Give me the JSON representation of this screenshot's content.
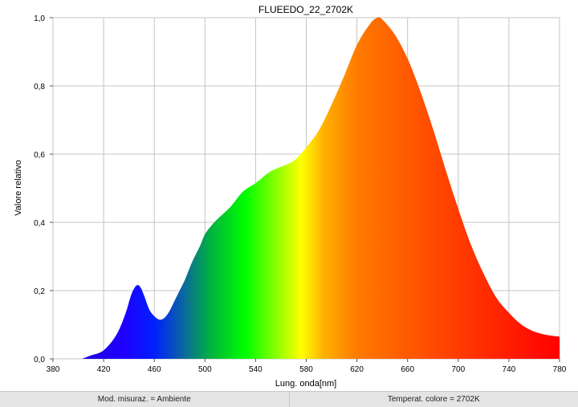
{
  "chart_data": {
    "type": "area",
    "title": "FLUEEDO_22_2702K",
    "xlabel": "Lung. onda[nm]",
    "ylabel": "Valore relativo",
    "xlim": [
      380,
      780
    ],
    "ylim": [
      0,
      1
    ],
    "x_ticks": [
      "380",
      "420",
      "460",
      "500",
      "540",
      "580",
      "620",
      "660",
      "700",
      "740",
      "780"
    ],
    "y_ticks": [
      "0,0",
      "0,2",
      "0,4",
      "0,6",
      "0,8",
      "1,0"
    ],
    "grid": true,
    "fill": "visible-spectrum gradient",
    "series": [
      {
        "x": [
          403,
          410,
          420,
          430,
          437,
          442,
          446,
          449,
          452,
          456,
          460,
          464,
          468,
          472,
          476,
          480,
          484,
          490,
          496,
          500,
          505,
          510,
          520,
          530,
          540,
          550,
          558,
          570,
          580,
          590,
          600,
          610,
          620,
          630,
          636,
          640,
          650,
          660,
          670,
          680,
          690,
          700,
          710,
          720,
          730,
          740,
          750,
          760,
          770,
          780
        ],
        "y": [
          0.0,
          0.01,
          0.025,
          0.07,
          0.13,
          0.19,
          0.215,
          0.21,
          0.185,
          0.145,
          0.125,
          0.115,
          0.12,
          0.14,
          0.17,
          0.2,
          0.23,
          0.285,
          0.33,
          0.365,
          0.39,
          0.41,
          0.445,
          0.49,
          0.515,
          0.545,
          0.56,
          0.58,
          0.62,
          0.67,
          0.745,
          0.83,
          0.92,
          0.98,
          1.0,
          0.995,
          0.95,
          0.88,
          0.785,
          0.675,
          0.555,
          0.44,
          0.335,
          0.25,
          0.18,
          0.135,
          0.1,
          0.08,
          0.07,
          0.065
        ]
      }
    ]
  },
  "status_bar": {
    "mode": "Mod. misuraz. = Ambiente",
    "cct": "Temperat. colore = 2702K"
  }
}
